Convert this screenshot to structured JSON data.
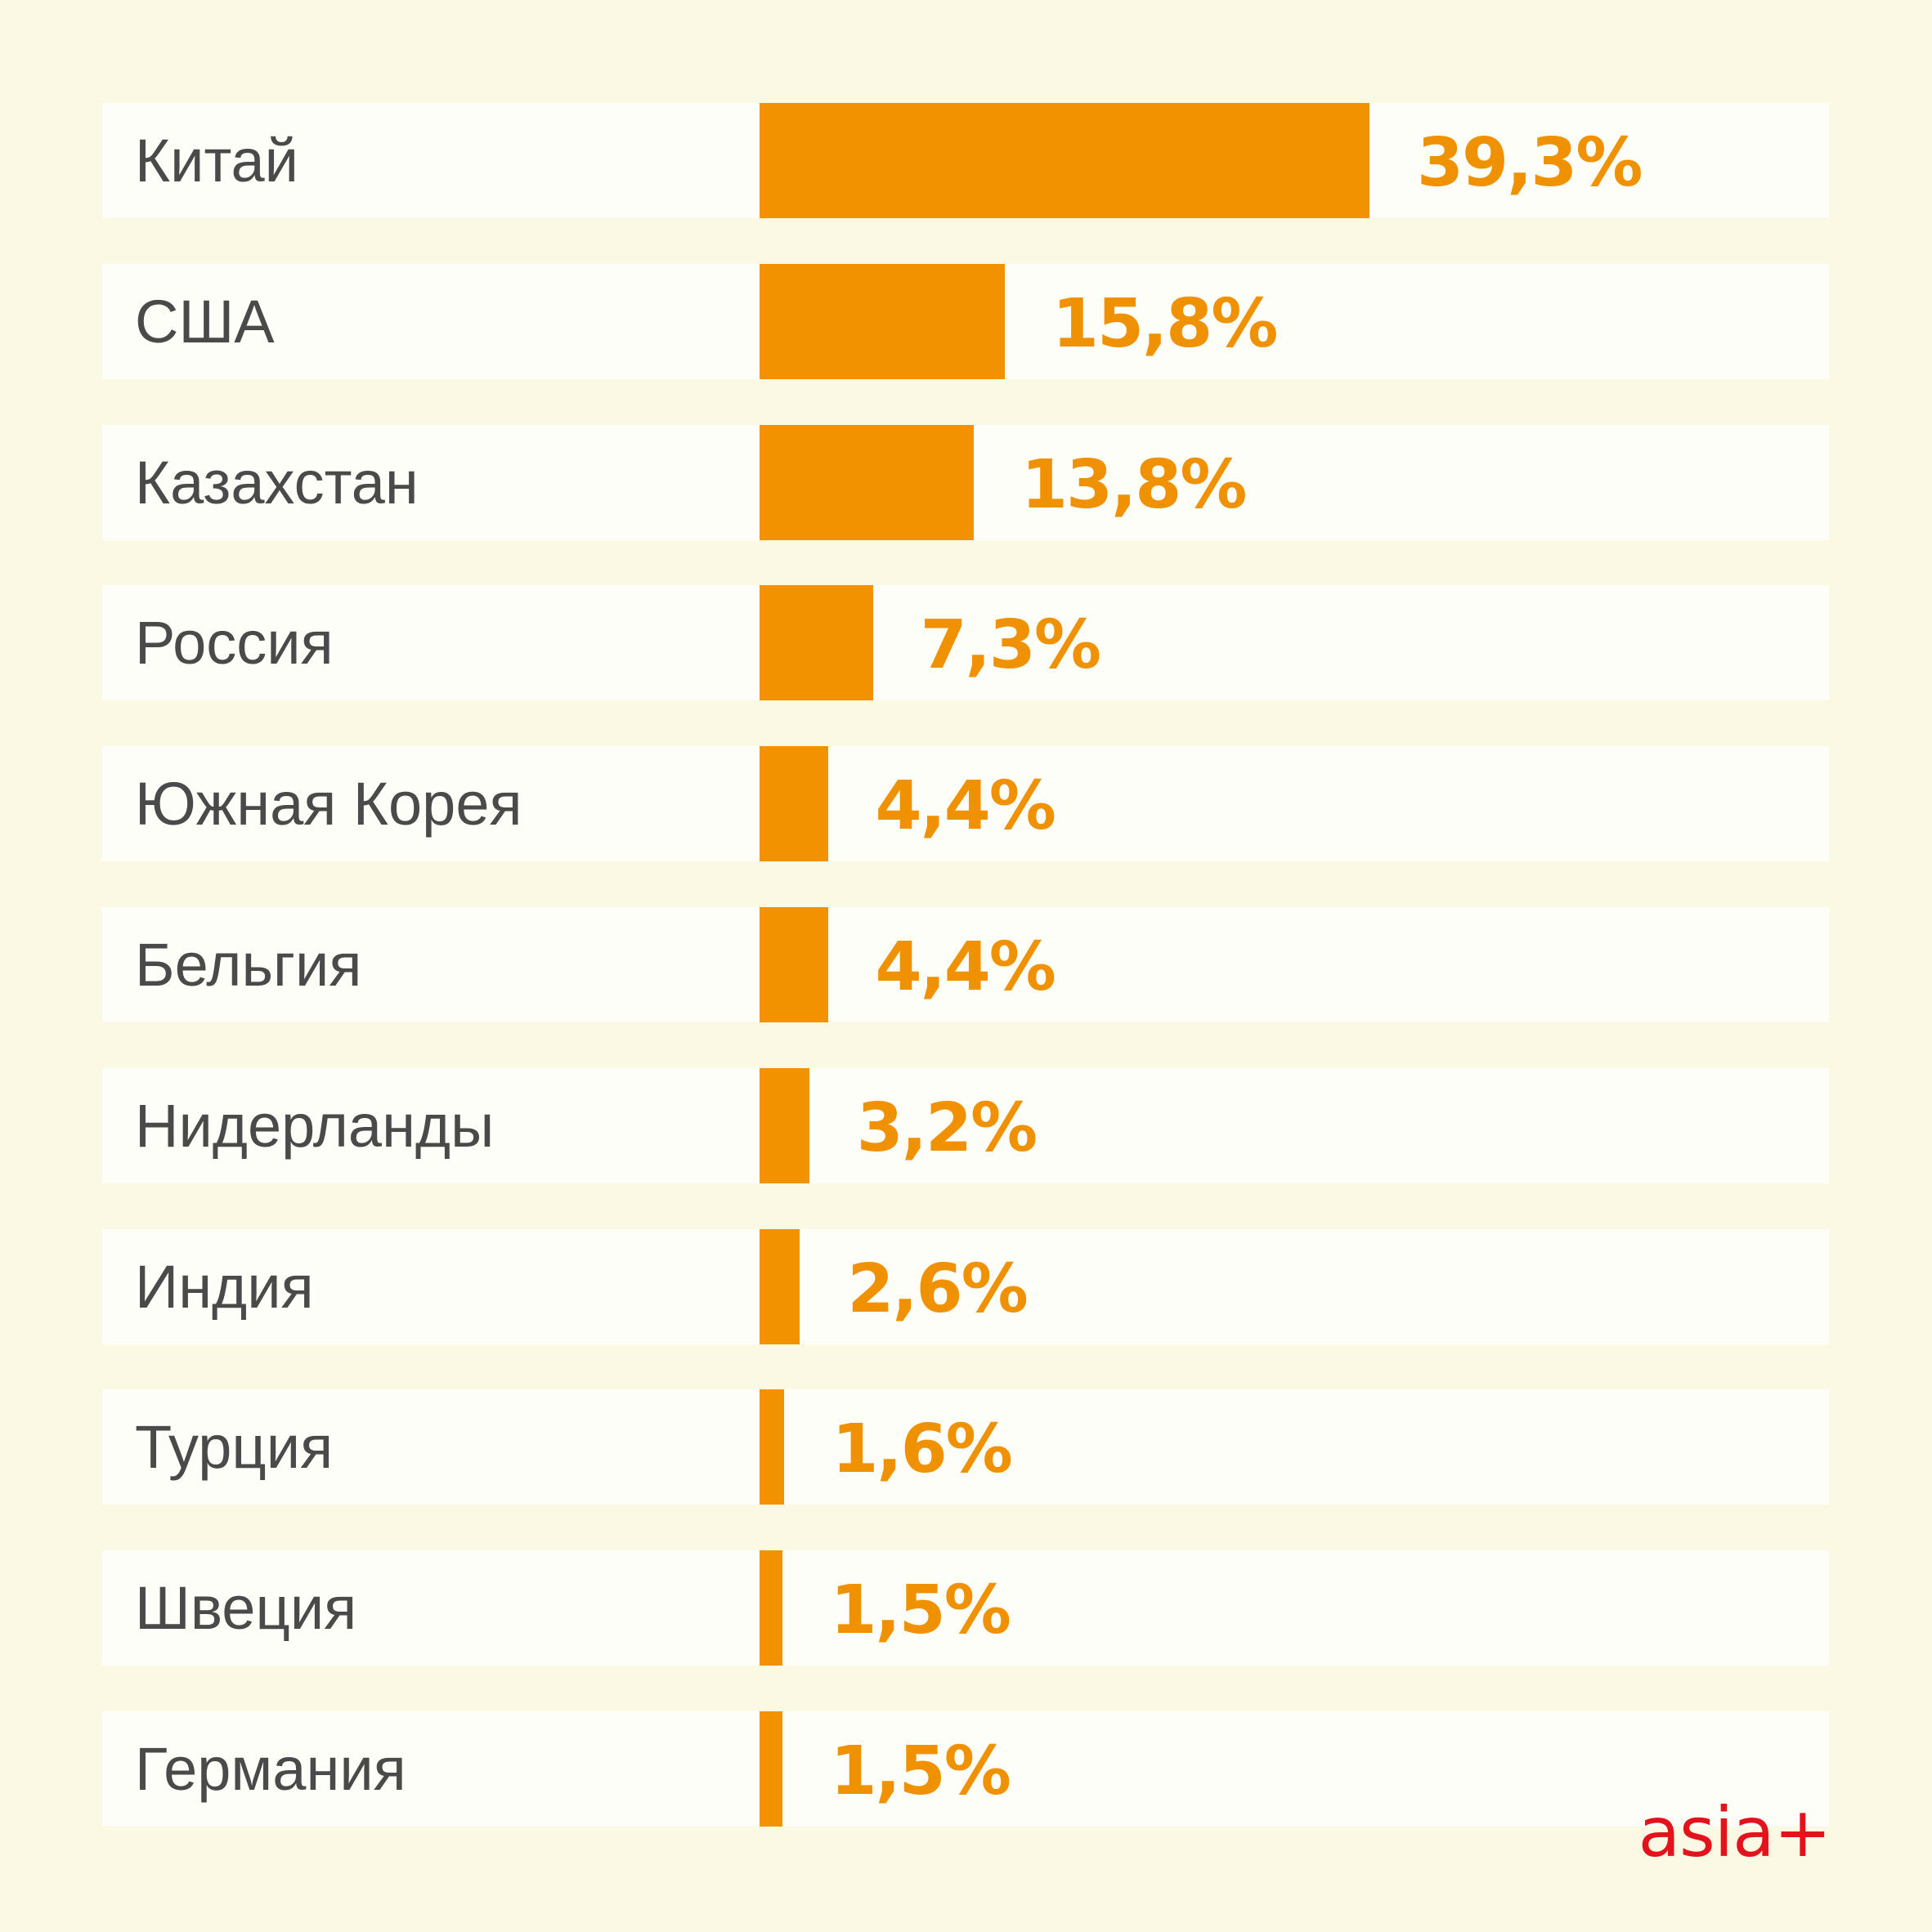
{
  "colors": {
    "background": "#fbf8e3",
    "row_background": "#fefef9",
    "bar": "#f29200",
    "value_text": "#ef9100",
    "label_text": "#4a4a4a",
    "logo": "#e3121c"
  },
  "logo": {
    "text": "asia+"
  },
  "chart_data": {
    "type": "bar",
    "orientation": "horizontal",
    "unit": "%",
    "title": "",
    "xlabel": "",
    "ylabel": "",
    "grid": false,
    "xlim": [
      0,
      39.3
    ],
    "categories": [
      "Китай",
      "США",
      "Казахстан",
      "Россия",
      "Южная Корея",
      "Бельгия",
      "Нидерланды",
      "Индия",
      "Турция",
      "Швеция",
      "Германия"
    ],
    "values": [
      39.3,
      15.8,
      13.8,
      7.3,
      4.4,
      4.4,
      3.2,
      2.6,
      1.6,
      1.5,
      1.5
    ],
    "value_labels": [
      "39,3%",
      "15,8%",
      "13,8%",
      "7,3%",
      "4,4%",
      "4,4%",
      "3,2%",
      "2,6%",
      "1,6%",
      "1,5%",
      "1,5%"
    ]
  }
}
